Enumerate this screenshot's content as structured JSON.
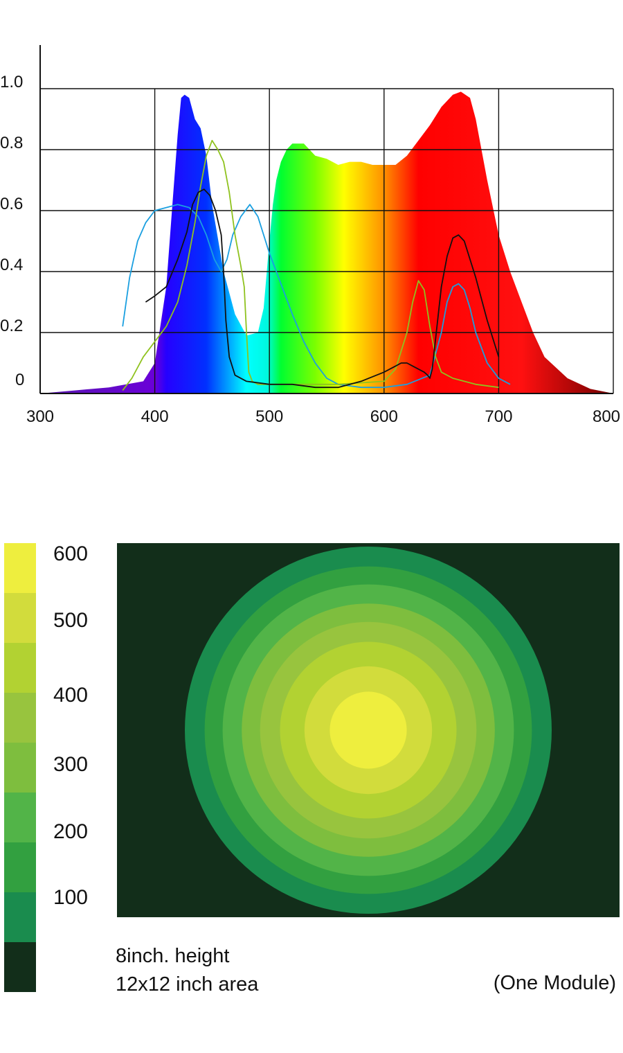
{
  "chart_data": [
    {
      "type": "area",
      "xlim": [
        300,
        800
      ],
      "ylim": [
        0,
        1.05
      ],
      "grid": true,
      "x_ticks": [
        "300",
        "400",
        "500",
        "600",
        "700",
        "800"
      ],
      "x_tick_values": [
        300,
        400,
        500,
        600,
        700,
        800
      ],
      "y_ticks": [
        "0",
        "0.2",
        "0.4",
        "0.6",
        "0.8",
        "1.0"
      ],
      "y_tick_values": [
        0,
        0.2,
        0.4,
        0.6,
        0.8,
        1.0
      ],
      "spectrum_colors": [
        {
          "wl": 300,
          "color": "#5a18b0"
        },
        {
          "wl": 400,
          "color": "#6a00d8"
        },
        {
          "wl": 410,
          "color": "#2600ff"
        },
        {
          "wl": 445,
          "color": "#0030ff"
        },
        {
          "wl": 480,
          "color": "#00ffff"
        },
        {
          "wl": 498,
          "color": "#00f8e0"
        },
        {
          "wl": 510,
          "color": "#00ff30"
        },
        {
          "wl": 540,
          "color": "#7bff00"
        },
        {
          "wl": 565,
          "color": "#ffff00"
        },
        {
          "wl": 600,
          "color": "#ff9000"
        },
        {
          "wl": 630,
          "color": "#ff0000"
        },
        {
          "wl": 720,
          "color": "#ff1010"
        },
        {
          "wl": 800,
          "color": "#700000"
        }
      ],
      "series": [
        {
          "role": "spectrum",
          "x": [
            300,
            330,
            360,
            390,
            400,
            410,
            415,
            420,
            423,
            426,
            430,
            435,
            440,
            445,
            450,
            460,
            470,
            480,
            490,
            495,
            500,
            503,
            506,
            510,
            515,
            520,
            530,
            540,
            550,
            560,
            570,
            580,
            590,
            600,
            610,
            620,
            630,
            640,
            650,
            660,
            667,
            675,
            680,
            690,
            700,
            710,
            720,
            730,
            740,
            760,
            780,
            800
          ],
          "y": [
            0.0,
            0.01,
            0.02,
            0.04,
            0.1,
            0.35,
            0.6,
            0.85,
            0.97,
            0.98,
            0.97,
            0.9,
            0.87,
            0.78,
            0.62,
            0.4,
            0.26,
            0.19,
            0.2,
            0.28,
            0.5,
            0.62,
            0.7,
            0.76,
            0.8,
            0.82,
            0.82,
            0.78,
            0.77,
            0.75,
            0.76,
            0.76,
            0.75,
            0.75,
            0.75,
            0.78,
            0.83,
            0.88,
            0.94,
            0.98,
            0.99,
            0.97,
            0.9,
            0.7,
            0.52,
            0.4,
            0.3,
            0.2,
            0.12,
            0.05,
            0.015,
            0.0
          ]
        },
        {
          "color": "#1a9fe0",
          "x": [
            372,
            378,
            385,
            392,
            400,
            410,
            420,
            430,
            438,
            445,
            452,
            458,
            463,
            468,
            475,
            483,
            490,
            500,
            510,
            520,
            530,
            540,
            550,
            560,
            580,
            600,
            620,
            640,
            650,
            655,
            660,
            665,
            670,
            675,
            680,
            690,
            700,
            710
          ],
          "y": [
            0.22,
            0.38,
            0.5,
            0.56,
            0.6,
            0.61,
            0.62,
            0.61,
            0.58,
            0.52,
            0.44,
            0.4,
            0.44,
            0.52,
            0.58,
            0.62,
            0.58,
            0.46,
            0.36,
            0.26,
            0.17,
            0.1,
            0.05,
            0.03,
            0.02,
            0.02,
            0.03,
            0.06,
            0.2,
            0.3,
            0.35,
            0.36,
            0.34,
            0.28,
            0.2,
            0.1,
            0.05,
            0.03
          ]
        },
        {
          "color": "#8fc21e",
          "x": [
            372,
            380,
            390,
            400,
            410,
            420,
            428,
            435,
            440,
            445,
            450,
            455,
            460,
            465,
            470,
            475,
            478,
            480,
            482,
            485,
            490,
            500,
            520,
            560,
            600,
            610,
            620,
            625,
            630,
            635,
            640,
            645,
            650,
            660,
            680,
            700
          ],
          "y": [
            0.01,
            0.05,
            0.12,
            0.17,
            0.22,
            0.3,
            0.42,
            0.56,
            0.68,
            0.78,
            0.83,
            0.8,
            0.76,
            0.66,
            0.52,
            0.42,
            0.35,
            0.2,
            0.07,
            0.04,
            0.03,
            0.03,
            0.03,
            0.03,
            0.04,
            0.08,
            0.2,
            0.3,
            0.37,
            0.34,
            0.22,
            0.12,
            0.07,
            0.05,
            0.03,
            0.02
          ]
        },
        {
          "color": "#111111",
          "x": [
            392,
            400,
            410,
            420,
            428,
            433,
            438,
            443,
            448,
            453,
            458,
            460,
            462,
            465,
            470,
            480,
            500,
            520,
            540,
            560,
            580,
            600,
            610,
            615,
            620,
            625,
            630,
            635,
            638,
            640,
            642,
            645,
            650,
            655,
            660,
            665,
            670,
            675,
            680,
            690,
            700
          ],
          "y": [
            0.3,
            0.32,
            0.35,
            0.44,
            0.53,
            0.62,
            0.66,
            0.67,
            0.65,
            0.6,
            0.52,
            0.4,
            0.24,
            0.12,
            0.06,
            0.04,
            0.03,
            0.03,
            0.02,
            0.02,
            0.04,
            0.07,
            0.09,
            0.1,
            0.1,
            0.09,
            0.08,
            0.07,
            0.06,
            0.05,
            0.08,
            0.18,
            0.35,
            0.45,
            0.51,
            0.52,
            0.5,
            0.44,
            0.38,
            0.24,
            0.12
          ]
        }
      ]
    },
    {
      "type": "heatmap",
      "legend_labels": [
        "600",
        "500",
        "400",
        "300",
        "200",
        "100"
      ],
      "colors": [
        "#eeee3e",
        "#d2dc3c",
        "#b2d232",
        "#98c43e",
        "#7ebe3e",
        "#52b448",
        "#32a040",
        "#1a8c4e",
        "#122e1a"
      ],
      "rings": [
        {
          "r": 1.0,
          "color": "#1a8c4e"
        },
        {
          "r": 0.892,
          "color": "#32a040"
        },
        {
          "r": 0.794,
          "color": "#52b448"
        },
        {
          "r": 0.69,
          "color": "#7ebe3e"
        },
        {
          "r": 0.59,
          "color": "#98c43e"
        },
        {
          "r": 0.481,
          "color": "#b2d232"
        },
        {
          "r": 0.348,
          "color": "#d2dc3c"
        },
        {
          "r": 0.21,
          "color": "#eeee3e"
        }
      ],
      "caption_line1": "8inch. height",
      "caption_line2": "12x12 inch area",
      "caption_right": "(One Module)"
    }
  ]
}
